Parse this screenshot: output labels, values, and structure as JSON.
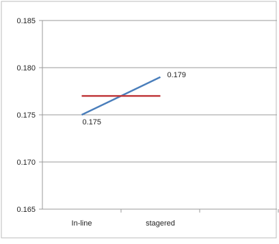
{
  "chart_data": {
    "type": "line",
    "categories": [
      "In-line",
      "stagered"
    ],
    "ylim": [
      0.165,
      0.185
    ],
    "yticks": [
      "0.185",
      "0.180",
      "0.175",
      "0.170",
      "0.165"
    ],
    "ytick_values": [
      0.185,
      0.18,
      0.175,
      0.17,
      0.165
    ],
    "grid": true,
    "legend": "none",
    "series": [
      {
        "values": [
          0.175,
          0.179
        ],
        "labels": [
          "0.175",
          "0.179"
        ],
        "color": "#4a7ebb"
      },
      {
        "values": [
          0.177,
          0.177
        ],
        "color": "#c0393b"
      }
    ],
    "frame_color": "#999999",
    "grid_color": "#9a9a9a"
  }
}
